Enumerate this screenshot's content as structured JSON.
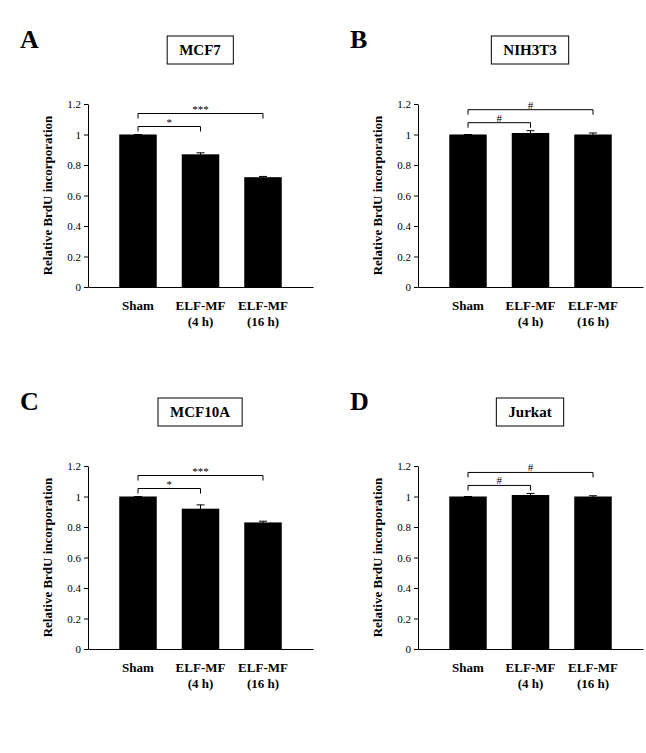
{
  "chart_data": [
    {
      "type": "bar",
      "panel": "A",
      "title": "MCF7",
      "y_label": "Relative BrdU incorporation",
      "categories": [
        "Sham",
        "ELF-MF\n(4 h)",
        "ELF-MF\n(16 h)"
      ],
      "values": [
        1,
        0.87,
        0.72
      ],
      "errors": [
        0,
        0.01,
        0.005
      ],
      "color": "#000000",
      "ylim": [
        0,
        1.2
      ],
      "yticks": [
        0,
        0.2,
        0.4,
        0.6,
        0.8,
        1,
        1.2
      ],
      "grid": false,
      "comparisons": [
        {
          "label": "*",
          "categories": [
            "Sham",
            "ELF-MF\n(4 h)"
          ]
        },
        {
          "label": "***",
          "categories": [
            "Sham",
            "ELF-MF\n(16 h)"
          ]
        }
      ]
    },
    {
      "type": "bar",
      "panel": "B",
      "title": "NIH3T3",
      "y_label": "Relative BrdU incorporation",
      "categories": [
        "Sham",
        "ELF-MF\n(4 h)",
        "ELF-MF\n(16 h)"
      ],
      "values": [
        1,
        1.01,
        1.0
      ],
      "errors": [
        0,
        0.015,
        0.01
      ],
      "color": "#000000",
      "ylim": [
        0,
        1.2
      ],
      "yticks": [
        0,
        0.2,
        0.4,
        0.6,
        0.8,
        1,
        1.2
      ],
      "grid": false,
      "comparisons": [
        {
          "label": "#",
          "categories": [
            "Sham",
            "ELF-MF\n(4 h)"
          ]
        },
        {
          "label": "#",
          "categories": [
            "Sham",
            "ELF-MF\n(16 h)"
          ]
        }
      ]
    },
    {
      "type": "bar",
      "panel": "C",
      "title": "MCF10A",
      "y_label": "Relative BrdU incorporation",
      "categories": [
        "Sham",
        "ELF-MF\n(4 h)",
        "ELF-MF\n(16 h)"
      ],
      "values": [
        1,
        0.92,
        0.83
      ],
      "errors": [
        0,
        0.025,
        0.008
      ],
      "color": "#000000",
      "ylim": [
        0,
        1.2
      ],
      "yticks": [
        0,
        0.2,
        0.4,
        0.6,
        0.8,
        1,
        1.2
      ],
      "grid": false,
      "comparisons": [
        {
          "label": "*",
          "categories": [
            "Sham",
            "ELF-MF\n(4 h)"
          ]
        },
        {
          "label": "***",
          "categories": [
            "Sham",
            "ELF-MF\n(16 h)"
          ]
        }
      ]
    },
    {
      "type": "bar",
      "panel": "D",
      "title": "Jurkat",
      "y_label": "Relative BrdU incorporation",
      "categories": [
        "Sham",
        "ELF-MF\n(4 h)",
        "ELF-MF\n(16 h)"
      ],
      "values": [
        1,
        1.01,
        1.0
      ],
      "errors": [
        0,
        0.01,
        0.005
      ],
      "color": "#000000",
      "ylim": [
        0,
        1.2
      ],
      "yticks": [
        0,
        0.2,
        0.4,
        0.6,
        0.8,
        1,
        1.2
      ],
      "grid": false,
      "comparisons": [
        {
          "label": "#",
          "categories": [
            "Sham",
            "ELF-MF\n(4 h)"
          ]
        },
        {
          "label": "#",
          "categories": [
            "Sham",
            "ELF-MF\n(16 h)"
          ]
        }
      ]
    }
  ]
}
